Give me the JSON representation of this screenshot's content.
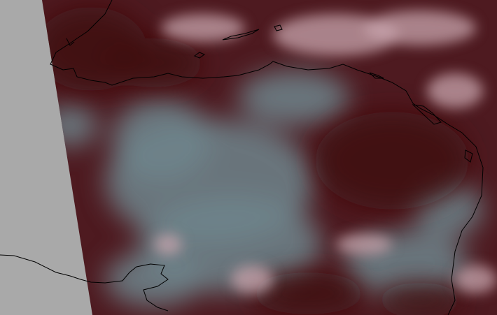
{
  "image": {
    "kind": "satellite composite with coastline overlay",
    "colors": {
      "no_data": "#a9a9a9",
      "clear_ground": "#4e1a20",
      "dense_dark": "#3e0c12",
      "low_cloud": "#6f858c",
      "high_cloud": "#c8a6ad",
      "coastline": "#000000"
    }
  }
}
